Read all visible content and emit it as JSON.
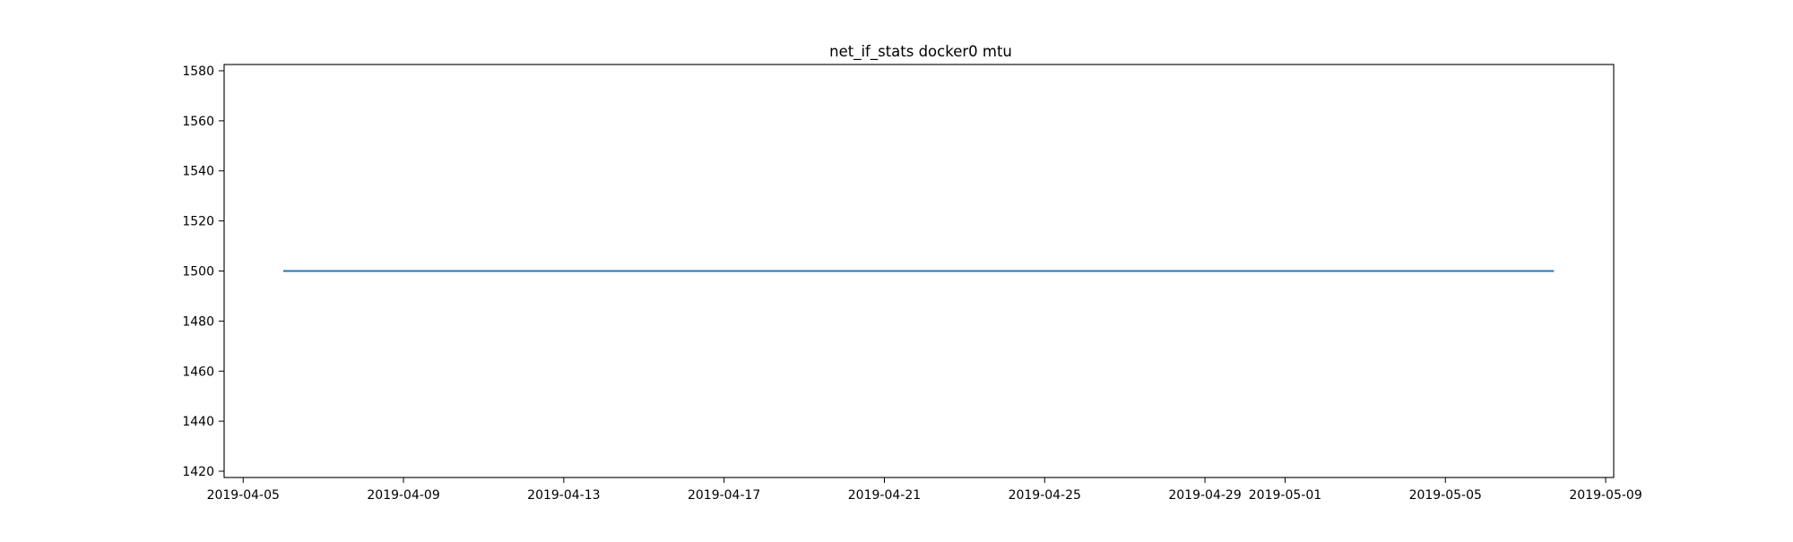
{
  "chart_data": {
    "type": "line",
    "title": "net_if_stats docker0 mtu",
    "xlabel": "",
    "ylabel": "",
    "x_axis_type": "date",
    "xlim": [
      "2019-04-04T12:35",
      "2019-05-09T04:48"
    ],
    "ylim": [
      1417.5,
      1582.5
    ],
    "x_ticks": [
      "2019-04-05",
      "2019-04-09",
      "2019-04-13",
      "2019-04-17",
      "2019-04-21",
      "2019-04-25",
      "2019-04-29",
      "2019-05-01",
      "2019-05-05",
      "2019-05-09"
    ],
    "y_ticks": [
      1420,
      1440,
      1460,
      1480,
      1500,
      1520,
      1540,
      1560,
      1580
    ],
    "grid": false,
    "legend": "none",
    "series": [
      {
        "color": "#1f77b4",
        "x": [
          "2019-04-06T00:00",
          "2019-05-07T17:00"
        ],
        "y": [
          1500,
          1500
        ]
      }
    ]
  }
}
